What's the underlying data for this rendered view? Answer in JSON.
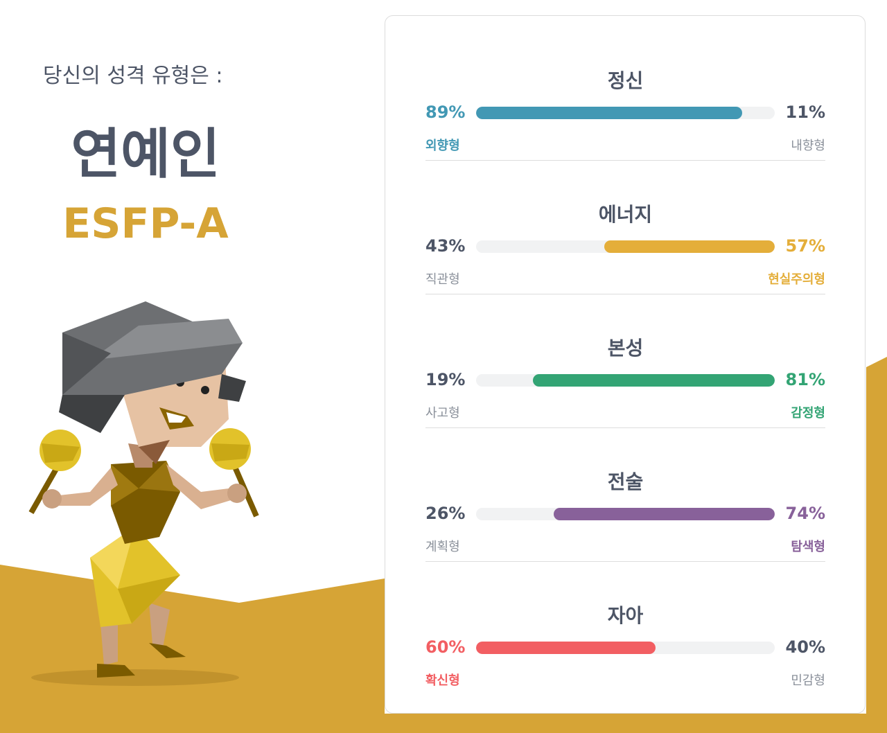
{
  "header": {
    "subtitle": "당신의 성격 유형은 :",
    "type_name": "연예인",
    "type_code": "ESFP-A"
  },
  "colors": {
    "text": "#4d5566",
    "muted": "#8a909a",
    "gold": "#d6a436",
    "track": "#f1f2f3"
  },
  "traits": [
    {
      "title": "정신",
      "left_pct": "89%",
      "right_pct": "11%",
      "left_label": "외향형",
      "right_label": "내향형",
      "value": 89,
      "side": "left",
      "color": "#4298b4"
    },
    {
      "title": "에너지",
      "left_pct": "43%",
      "right_pct": "57%",
      "left_label": "직관형",
      "right_label": "현실주의형",
      "value": 57,
      "side": "right",
      "color": "#e4ae3a"
    },
    {
      "title": "본성",
      "left_pct": "19%",
      "right_pct": "81%",
      "left_label": "사고형",
      "right_label": "감정형",
      "value": 81,
      "side": "right",
      "color": "#33a474"
    },
    {
      "title": "전술",
      "left_pct": "26%",
      "right_pct": "74%",
      "left_label": "계획형",
      "right_label": "탐색형",
      "value": 74,
      "side": "right",
      "color": "#88619a"
    },
    {
      "title": "자아",
      "left_pct": "60%",
      "right_pct": "40%",
      "left_label": "확신형",
      "right_label": "민감형",
      "value": 60,
      "side": "left",
      "color": "#f25e62"
    }
  ]
}
